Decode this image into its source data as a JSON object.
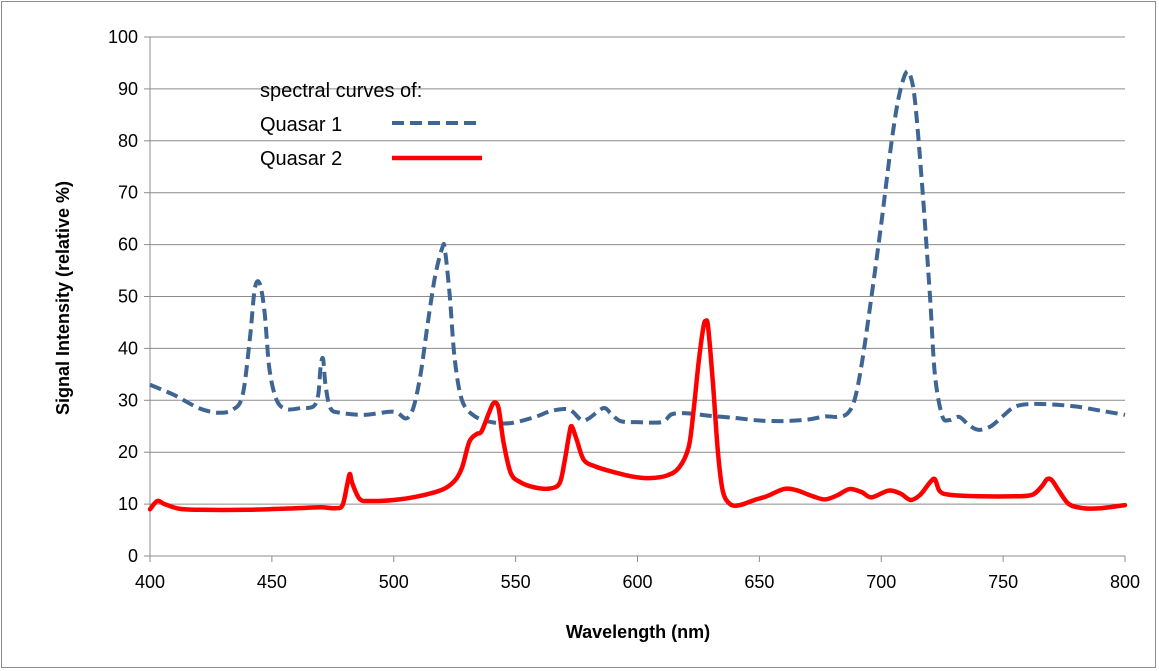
{
  "chart_data": {
    "type": "line",
    "title": "",
    "xlabel": "Wavelength (nm)",
    "ylabel": "Signal Intensity  (relative %)",
    "xlim": [
      400,
      800
    ],
    "ylim": [
      0,
      100
    ],
    "xticks": [
      400,
      450,
      500,
      550,
      600,
      650,
      700,
      750,
      800
    ],
    "yticks": [
      0,
      10,
      20,
      30,
      40,
      50,
      60,
      70,
      80,
      90,
      100
    ],
    "grid": "horizontal",
    "legend": {
      "heading": "spectral curves of:",
      "placement": "top-left"
    },
    "series": [
      {
        "name": "Quasar 1",
        "color": "#3f6592",
        "style": "dashed",
        "points": [
          [
            400,
            33
          ],
          [
            410,
            31
          ],
          [
            420,
            28.5
          ],
          [
            428,
            27.6
          ],
          [
            434,
            28.2
          ],
          [
            438,
            31
          ],
          [
            441,
            42
          ],
          [
            443,
            51.5
          ],
          [
            445,
            52.5
          ],
          [
            447,
            47
          ],
          [
            449,
            36
          ],
          [
            452,
            30
          ],
          [
            456,
            28.3
          ],
          [
            462,
            28.5
          ],
          [
            467,
            28.8
          ],
          [
            469,
            31
          ],
          [
            470,
            36.5
          ],
          [
            471,
            38
          ],
          [
            472,
            33
          ],
          [
            474,
            28.5
          ],
          [
            478,
            27.6
          ],
          [
            488,
            27.2
          ],
          [
            500,
            27.8
          ],
          [
            505,
            26.5
          ],
          [
            508,
            28.5
          ],
          [
            511,
            35
          ],
          [
            514,
            45
          ],
          [
            517,
            54
          ],
          [
            520,
            59.5
          ],
          [
            521,
            59
          ],
          [
            523,
            50
          ],
          [
            525,
            38
          ],
          [
            528,
            30
          ],
          [
            533,
            27
          ],
          [
            540,
            25.8
          ],
          [
            548,
            25.6
          ],
          [
            558,
            26.8
          ],
          [
            565,
            28
          ],
          [
            572,
            28.2
          ],
          [
            577,
            26.2
          ],
          [
            580,
            26.5
          ],
          [
            586,
            28.5
          ],
          [
            589,
            27.5
          ],
          [
            593,
            26
          ],
          [
            600,
            25.8
          ],
          [
            610,
            25.8
          ],
          [
            614,
            27.3
          ],
          [
            620,
            27.5
          ],
          [
            630,
            27
          ],
          [
            640,
            26.6
          ],
          [
            650,
            26.1
          ],
          [
            660,
            26
          ],
          [
            670,
            26.3
          ],
          [
            677,
            26.9
          ],
          [
            682,
            26.8
          ],
          [
            686,
            27.4
          ],
          [
            689,
            30
          ],
          [
            692,
            37
          ],
          [
            696,
            50
          ],
          [
            700,
            64
          ],
          [
            704,
            79
          ],
          [
            707,
            88
          ],
          [
            710,
            93
          ],
          [
            712,
            92.5
          ],
          [
            714,
            87
          ],
          [
            717,
            70
          ],
          [
            720,
            50
          ],
          [
            722,
            35
          ],
          [
            725,
            27
          ],
          [
            728,
            26.2
          ],
          [
            732,
            26.8
          ],
          [
            736,
            25.2
          ],
          [
            740,
            24.3
          ],
          [
            745,
            25
          ],
          [
            750,
            27
          ],
          [
            755,
            28.8
          ],
          [
            762,
            29.3
          ],
          [
            770,
            29.2
          ],
          [
            780,
            28.8
          ],
          [
            790,
            28
          ],
          [
            800,
            27.2
          ]
        ]
      },
      {
        "name": "Quasar 2",
        "color": "#ff0000",
        "style": "solid",
        "points": [
          [
            400,
            9
          ],
          [
            403,
            10.6
          ],
          [
            406,
            10
          ],
          [
            412,
            9.1
          ],
          [
            420,
            8.9
          ],
          [
            440,
            8.9
          ],
          [
            460,
            9.2
          ],
          [
            470,
            9.4
          ],
          [
            476,
            9.2
          ],
          [
            479,
            9.8
          ],
          [
            481,
            14
          ],
          [
            482,
            15.8
          ],
          [
            483,
            14
          ],
          [
            486,
            11
          ],
          [
            490,
            10.6
          ],
          [
            500,
            10.8
          ],
          [
            510,
            11.5
          ],
          [
            520,
            12.8
          ],
          [
            525,
            14.5
          ],
          [
            528,
            17
          ],
          [
            531,
            22
          ],
          [
            534,
            23.5
          ],
          [
            536,
            24
          ],
          [
            539,
            27.5
          ],
          [
            541,
            29.5
          ],
          [
            543,
            28.5
          ],
          [
            545,
            22
          ],
          [
            548,
            16
          ],
          [
            552,
            14.2
          ],
          [
            558,
            13.2
          ],
          [
            564,
            13
          ],
          [
            568,
            14
          ],
          [
            570,
            18
          ],
          [
            572,
            23.5
          ],
          [
            573,
            25
          ],
          [
            575,
            22.5
          ],
          [
            578,
            18.5
          ],
          [
            583,
            17.2
          ],
          [
            590,
            16.2
          ],
          [
            598,
            15.3
          ],
          [
            605,
            15
          ],
          [
            612,
            15.5
          ],
          [
            617,
            17
          ],
          [
            621,
            21
          ],
          [
            623,
            28
          ],
          [
            625,
            37
          ],
          [
            627,
            44
          ],
          [
            628,
            45.3
          ],
          [
            629,
            44
          ],
          [
            631,
            33
          ],
          [
            633,
            20
          ],
          [
            635,
            12.5
          ],
          [
            638,
            10
          ],
          [
            642,
            9.8
          ],
          [
            648,
            10.8
          ],
          [
            653,
            11.5
          ],
          [
            660,
            12.9
          ],
          [
            665,
            12.7
          ],
          [
            672,
            11.5
          ],
          [
            677,
            10.9
          ],
          [
            682,
            11.7
          ],
          [
            687,
            12.9
          ],
          [
            692,
            12.3
          ],
          [
            696,
            11.3
          ],
          [
            703,
            12.6
          ],
          [
            708,
            12
          ],
          [
            712,
            10.8
          ],
          [
            716,
            11.8
          ],
          [
            720,
            14.2
          ],
          [
            722,
            14.8
          ],
          [
            724,
            12.5
          ],
          [
            728,
            11.8
          ],
          [
            740,
            11.5
          ],
          [
            755,
            11.5
          ],
          [
            762,
            11.8
          ],
          [
            766,
            13.5
          ],
          [
            768,
            14.8
          ],
          [
            770,
            14.6
          ],
          [
            773,
            12.5
          ],
          [
            777,
            10
          ],
          [
            783,
            9.2
          ],
          [
            790,
            9.2
          ],
          [
            800,
            9.8
          ]
        ]
      }
    ]
  }
}
